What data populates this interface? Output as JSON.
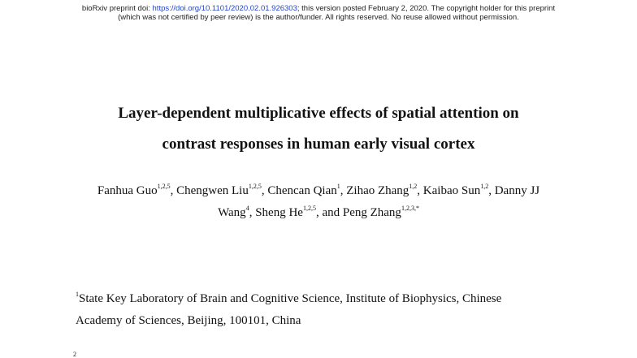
{
  "header": {
    "line1_prefix": "bioRxiv preprint doi: ",
    "doi_link": "https://doi.org/10.1101/2020.02.01.926303",
    "line1_suffix": "; this version posted February 2, 2020. The copyright holder for this preprint",
    "line2": "(which was not certified by peer review) is the author/funder. All rights reserved. No reuse allowed without permission."
  },
  "title": {
    "line1": "Layer-dependent multiplicative effects of spatial attention on",
    "line2": "contrast responses in human early visual cortex"
  },
  "authors": [
    {
      "name": "Fanhua Guo",
      "sup": "1,2,5"
    },
    {
      "name": "Chengwen Liu",
      "sup": "1,2,5"
    },
    {
      "name": "Chencan Qian",
      "sup": "1"
    },
    {
      "name": "Zihao Zhang",
      "sup": "1,2"
    },
    {
      "name": "Kaibao Sun",
      "sup": "1,2"
    },
    {
      "name_part1": "Danny JJ",
      "name_part2": "Wang",
      "sup": "4"
    },
    {
      "name": "Sheng He",
      "sup": "1,2,5"
    },
    {
      "name": "Peng Zhang",
      "sup": "1,2,3,*"
    }
  ],
  "separators": {
    "comma": ", ",
    "and": ", and "
  },
  "affiliations": [
    {
      "sup": "1",
      "line1": "State Key Laboratory of Brain and Cognitive Science, Institute of Biophysics, Chinese",
      "line2": "Academy of Sciences, Beijing, 100101, China"
    },
    {
      "sup": "2"
    }
  ]
}
